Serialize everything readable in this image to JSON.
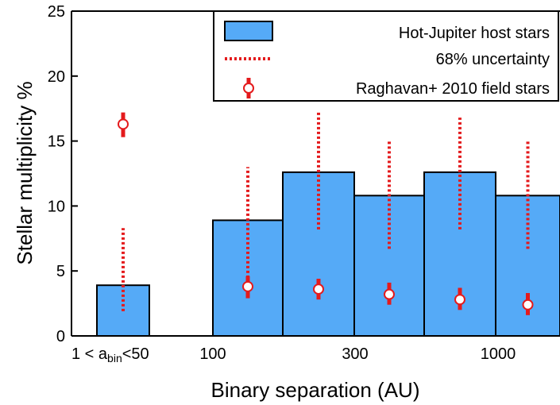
{
  "chart_data": {
    "type": "bar",
    "xlabel": "Binary separation (AU)",
    "ylabel": "Stellar multiplicity %",
    "ylim": [
      0,
      25
    ],
    "y_ticks": [
      "0",
      "5",
      "10",
      "15",
      "20",
      "25"
    ],
    "x_ticks": [
      {
        "label": "1 < a",
        "sub": "bin",
        "label_tail": "<50"
      },
      {
        "label": "100"
      },
      {
        "label": "300"
      },
      {
        "label": "1000"
      }
    ],
    "bins": [
      {
        "range": "1-50",
        "value": 3.9,
        "unc_low": 1.9,
        "unc_high": 8.3,
        "field": 16.3,
        "field_low": 15.3,
        "field_high": 17.2
      },
      {
        "range": "50-100",
        "value": 0
      },
      {
        "range": "100-200",
        "value": 8.9,
        "unc_low": 3.0,
        "unc_high": 13.0,
        "field": 3.8,
        "field_low": 2.9,
        "field_high": 4.6
      },
      {
        "range": "200-350",
        "value": 12.6,
        "unc_low": 8.2,
        "unc_high": 17.2,
        "field": 3.6,
        "field_low": 2.8,
        "field_high": 4.4
      },
      {
        "range": "350-600",
        "value": 10.8,
        "unc_low": 6.7,
        "unc_high": 15.0,
        "field": 3.2,
        "field_low": 2.4,
        "field_high": 4.1
      },
      {
        "range": "600-1100",
        "value": 12.6,
        "unc_low": 8.2,
        "unc_high": 16.8,
        "field": 2.8,
        "field_low": 2.0,
        "field_high": 3.7
      },
      {
        "range": "1100-2000",
        "value": 10.8,
        "unc_low": 6.7,
        "unc_high": 15.0,
        "field": 2.4,
        "field_low": 1.6,
        "field_high": 3.3
      }
    ],
    "series": [
      {
        "name": "Hot-Jupiter host stars",
        "color": "#55aaf7",
        "kind": "bar"
      },
      {
        "name": "68% uncertainty",
        "color": "#e41a1c",
        "kind": "dotted-errorbar"
      },
      {
        "name": "Raghavan+ 2010 field stars",
        "color": "#e41a1c",
        "kind": "point-errorbar"
      }
    ],
    "legend_position": "top-right",
    "grid": false
  }
}
